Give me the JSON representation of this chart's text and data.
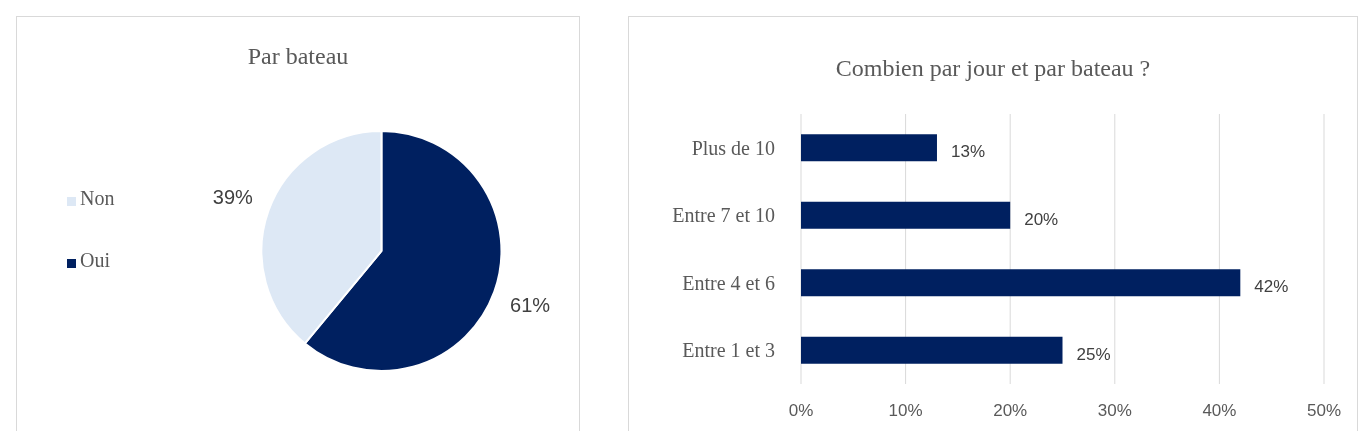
{
  "chart_data": [
    {
      "type": "pie",
      "title": "Par bateau",
      "categories": [
        "Oui",
        "Non"
      ],
      "values": [
        61,
        39
      ],
      "colors": [
        "#002060",
        "#dde8f5"
      ],
      "value_labels": [
        "61%",
        "39%"
      ],
      "legend": "left"
    },
    {
      "type": "bar",
      "orientation": "horizontal",
      "title": "Combien par jour et par bateau ?",
      "categories": [
        "Plus de 10",
        "Entre 7 et 10",
        "Entre 4 et 6",
        "Entre 1 et 3"
      ],
      "series": [
        {
          "color": "#002060",
          "values": [
            13,
            20,
            42,
            25
          ],
          "value_labels": [
            "13%",
            "20%",
            "42%",
            "25%"
          ]
        }
      ],
      "xlim": [
        0,
        50
      ],
      "xticks": [
        {
          "value": 0,
          "label": "0%"
        },
        {
          "value": 10,
          "label": "10%"
        },
        {
          "value": 20,
          "label": "20%"
        },
        {
          "value": 30,
          "label": "30%"
        },
        {
          "value": 40,
          "label": "40%"
        },
        {
          "value": 50,
          "label": "50%"
        }
      ],
      "grid": "x"
    }
  ]
}
